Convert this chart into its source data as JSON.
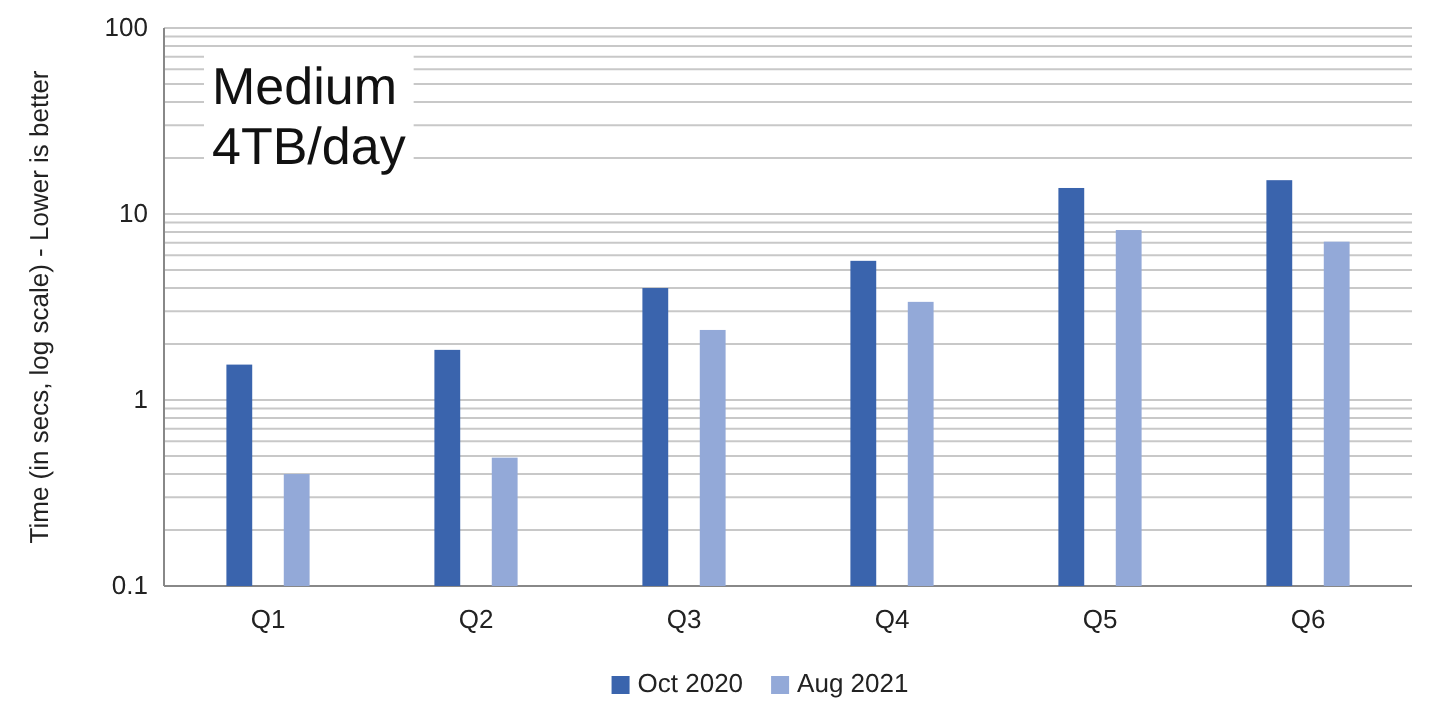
{
  "chart_data": {
    "type": "bar",
    "categories": [
      "Q1",
      "Q2",
      "Q3",
      "Q4",
      "Q5",
      "Q6"
    ],
    "series": [
      {
        "name": "Oct 2020",
        "color": "#3a64ad",
        "values": [
          1.55,
          1.86,
          4.0,
          5.6,
          13.8,
          15.2
        ]
      },
      {
        "name": "Aug 2021",
        "color": "#93a9d8",
        "values": [
          0.4,
          0.49,
          2.38,
          3.37,
          8.2,
          7.1
        ]
      }
    ],
    "ylabel": "Time (in secs, log scale) - Lower is better",
    "log": true,
    "ylim": [
      0.1,
      100
    ],
    "yticks": [
      0.1,
      {
        "value": 0.2,
        "label": null
      },
      {
        "value": 0.3,
        "label": null
      },
      {
        "value": 0.4,
        "label": null
      },
      {
        "value": 0.5,
        "label": null
      },
      {
        "value": 0.6,
        "label": null
      },
      {
        "value": 0.7,
        "label": null
      },
      {
        "value": 0.8,
        "label": null
      },
      {
        "value": 0.9,
        "label": null
      },
      1,
      {
        "value": 2,
        "label": null
      },
      {
        "value": 3,
        "label": null
      },
      {
        "value": 4,
        "label": null
      },
      {
        "value": 5,
        "label": null
      },
      {
        "value": 6,
        "label": null
      },
      {
        "value": 7,
        "label": null
      },
      {
        "value": 8,
        "label": null
      },
      {
        "value": 9,
        "label": null
      },
      10,
      {
        "value": 20,
        "label": null
      },
      {
        "value": 30,
        "label": null
      },
      {
        "value": 40,
        "label": null
      },
      {
        "value": 50,
        "label": null
      },
      {
        "value": 60,
        "label": null
      },
      {
        "value": 70,
        "label": null
      },
      {
        "value": 80,
        "label": null
      },
      {
        "value": 90,
        "label": null
      },
      100
    ],
    "grid": "y",
    "legend": "bottom",
    "annotations": [
      "Medium",
      "4TB/day"
    ]
  }
}
